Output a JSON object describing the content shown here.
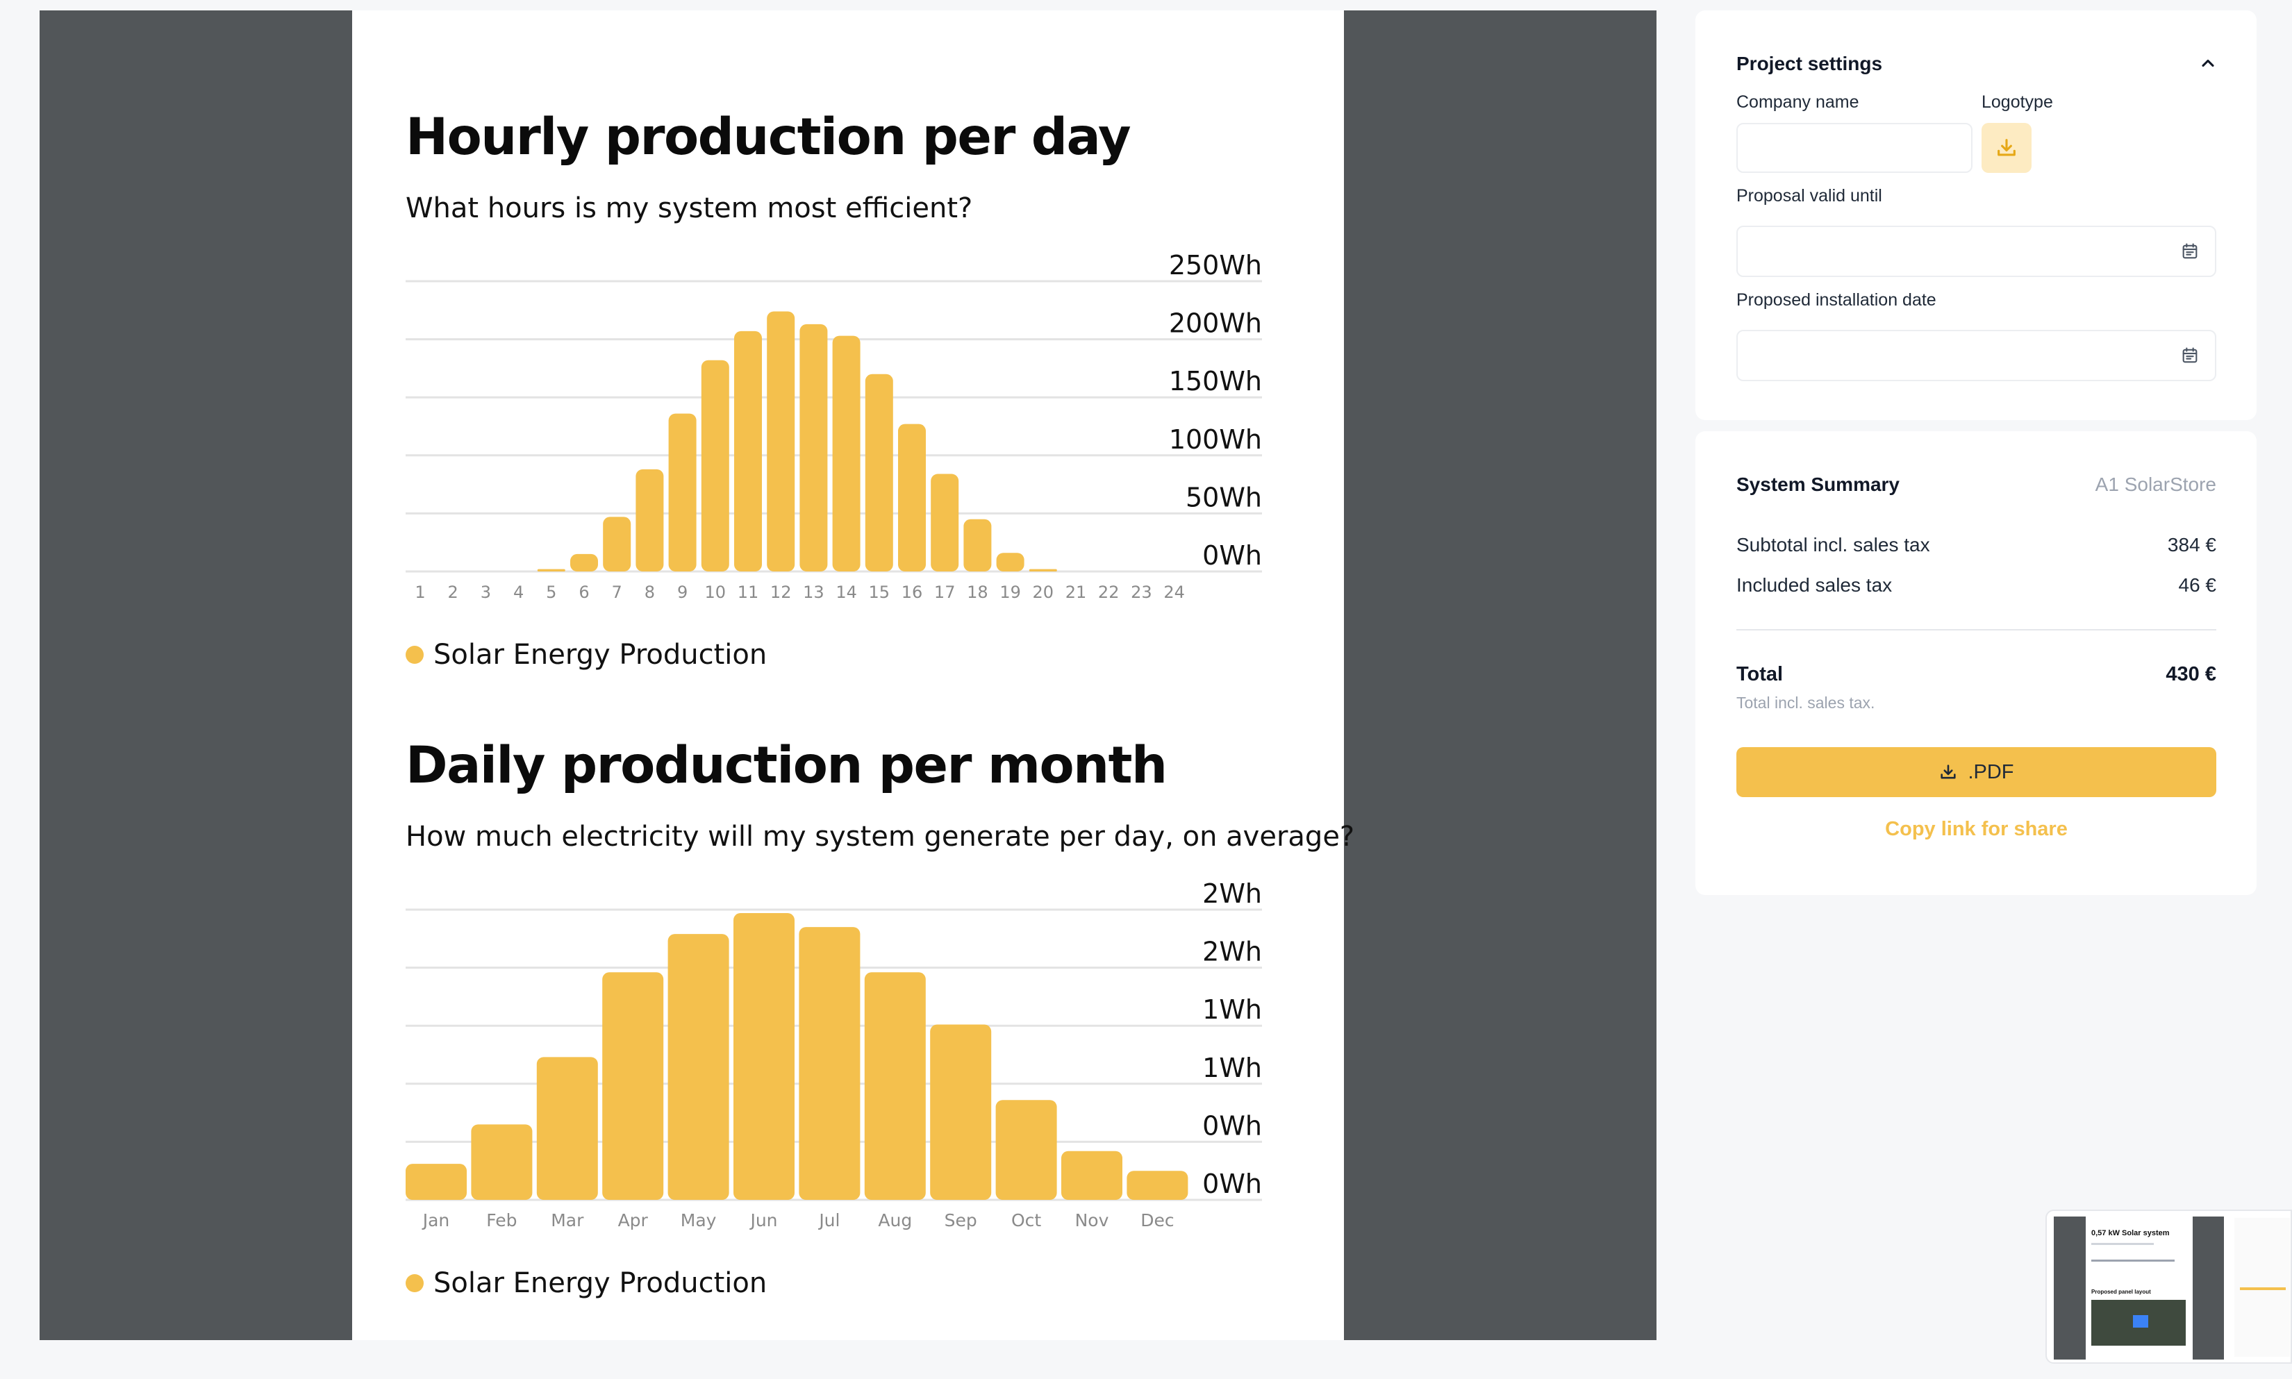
{
  "hourly": {
    "title": "Hourly production per day",
    "subtitle": "What hours is my system most efficient?",
    "legend": "Solar Energy Production"
  },
  "monthly": {
    "title": "Daily production per month",
    "subtitle": "How much electricity will my system generate per day, on average?",
    "legend": "Solar Energy Production"
  },
  "chart_data": [
    {
      "type": "bar",
      "title": "Hourly production per day",
      "categories": [
        "1",
        "2",
        "3",
        "4",
        "5",
        "6",
        "7",
        "8",
        "9",
        "10",
        "11",
        "12",
        "13",
        "14",
        "15",
        "16",
        "17",
        "18",
        "19",
        "20",
        "21",
        "22",
        "23",
        "24"
      ],
      "series": [
        {
          "name": "Solar Energy Production",
          "values": [
            0,
            0,
            0,
            0,
            2,
            15,
            47,
            88,
            136,
            182,
            207,
            224,
            213,
            203,
            170,
            127,
            84,
            45,
            16,
            2,
            0,
            0,
            0,
            0
          ]
        }
      ],
      "y_ticks": [
        "250Wh",
        "200Wh",
        "150Wh",
        "100Wh",
        "50Wh",
        "0Wh"
      ],
      "ylim": [
        0,
        250
      ],
      "color": "#f4c04d",
      "legend_position": "bottom-left"
    },
    {
      "type": "bar",
      "title": "Daily production per month",
      "categories": [
        "Jan",
        "Feb",
        "Mar",
        "Apr",
        "May",
        "Jun",
        "Jul",
        "Aug",
        "Sep",
        "Oct",
        "Nov",
        "Dec"
      ],
      "series": [
        {
          "name": "Solar Energy Production",
          "values": [
            0.31,
            0.65,
            1.23,
            1.96,
            2.29,
            2.47,
            2.35,
            1.96,
            1.51,
            0.86,
            0.42,
            0.25
          ]
        }
      ],
      "y_ticks": [
        "2Wh",
        "2Wh",
        "1Wh",
        "1Wh",
        "0Wh",
        "0Wh"
      ],
      "ylim": [
        0,
        2.5
      ],
      "color": "#f4c04d",
      "legend_position": "bottom-left"
    }
  ],
  "settings": {
    "title": "Project settings",
    "company_label": "Company name",
    "company_value": "",
    "logotype_label": "Logotype",
    "valid_until_label": "Proposal valid until",
    "valid_until_value": "",
    "install_date_label": "Proposed installation date",
    "install_date_value": ""
  },
  "summary": {
    "title": "System Summary",
    "vendor": "A1 SolarStore",
    "subtotal_label": "Subtotal incl. sales tax",
    "subtotal_value": "384 €",
    "tax_label": "Included sales tax",
    "tax_value": "46 €",
    "total_label": "Total",
    "total_value": "430 €",
    "total_note": "Total incl. sales tax.",
    "pdf_label": ".PDF",
    "share_label": "Copy link for share"
  },
  "thumbnail": {
    "title": "0,57 kW Solar system",
    "section": "Proposed panel layout"
  },
  "colors": {
    "accent": "#f4c04d",
    "accent_light": "#fdebc2",
    "preview_bg": "#525659"
  },
  "icons": {
    "collapse": "chevron-up-icon",
    "upload": "download-tray-icon",
    "calendar": "calendar-icon"
  }
}
